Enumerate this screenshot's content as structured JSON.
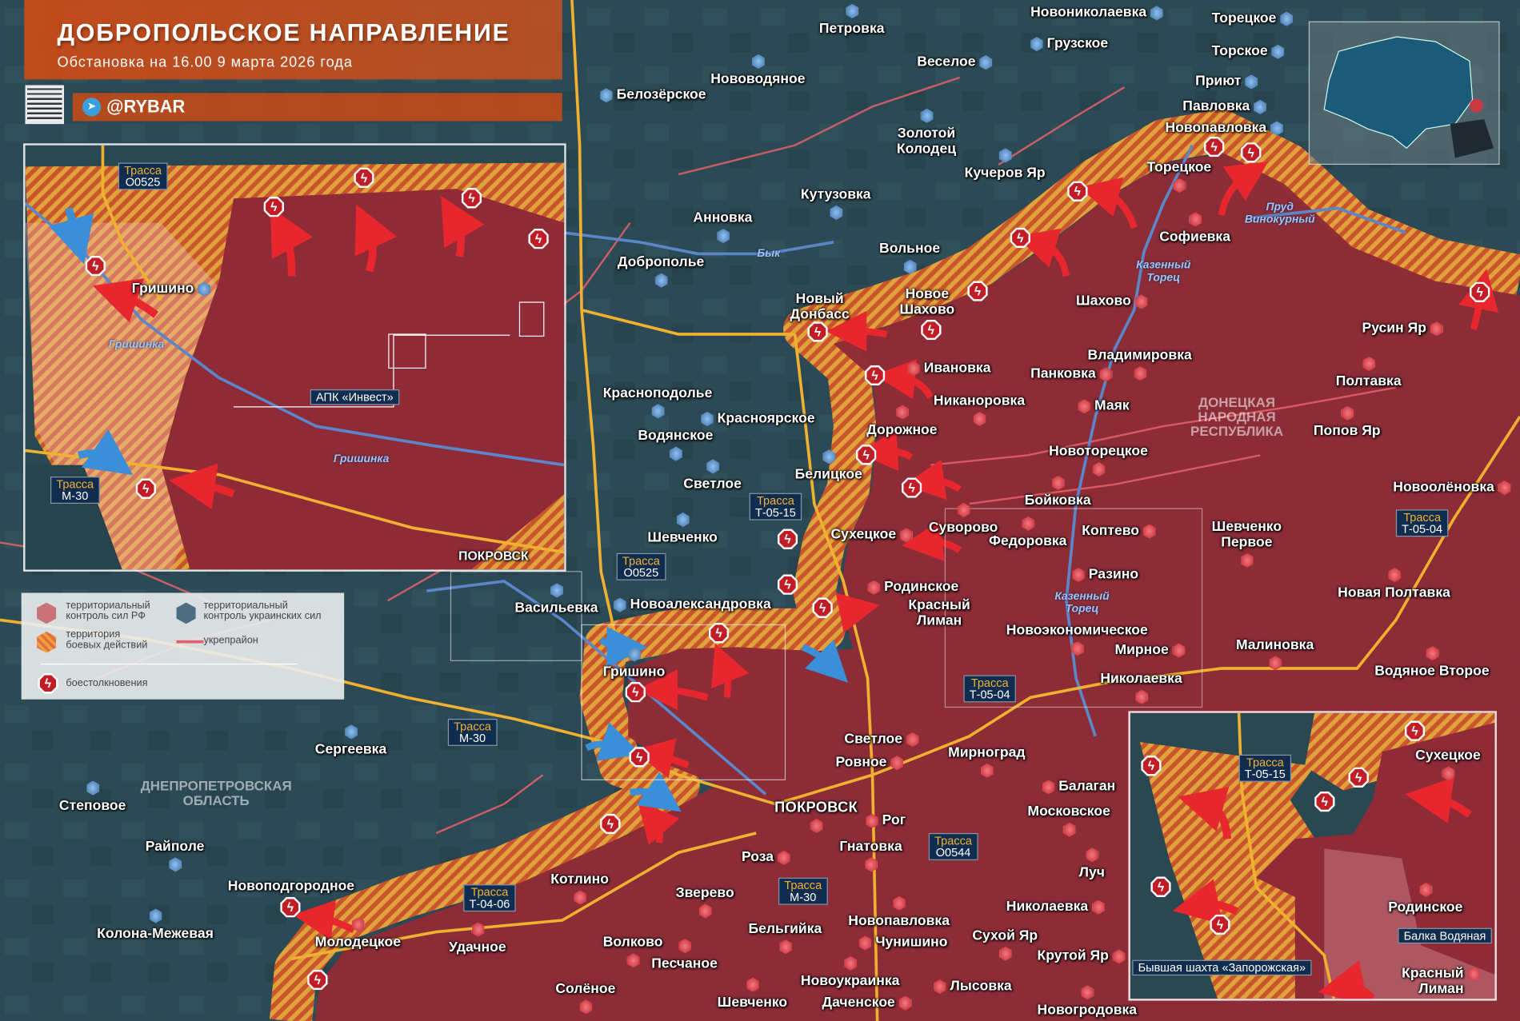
{
  "header": {
    "title": "ДОБРОПОЛЬСКОЕ НАПРАВЛЕНИЕ",
    "subtitle": "Обстановка на 16.00 9 марта 2026 года",
    "telegram_handle": "@RYBAR",
    "telegram_icon": "telegram-icon"
  },
  "legend": {
    "ru_control": "территориальный\nконтроль сил РФ",
    "ua_control": "территориальный\nконтроль украинских сил",
    "combat_zone": "территория\nбоевых действий",
    "fortified": "укрепрайон",
    "clashes": "боестолкновения"
  },
  "colors": {
    "ru_control": "#8e2b36",
    "ua_control": "#2b4852",
    "combat_hatch": "#e3a33a",
    "fortified_line": "#e8606a",
    "road": "#f0b030",
    "river": "#5b86c9",
    "title_bar": "#c84b19"
  },
  "map": {
    "regions": [
      "ДНЕПРОПЕТРОВСКАЯ\nОБЛАСТЬ",
      "ДОНЕЦКАЯ\nНАРОДНАЯ\nРЕСПУБЛИКА"
    ],
    "rivers": [
      "Бык",
      "Казенный\nТорец",
      "Пруд\nВинокурный",
      "Казенный\nТорец"
    ],
    "settlements_ua": [
      "Новониколаевка",
      "Торецкое",
      "Петровка",
      "Грузское",
      "Веселое",
      "Торское",
      "Нововодяное",
      "Белозёрское",
      "Приют",
      "Павловка",
      "Новопавловка",
      "Золотой\nКолодец",
      "Кучеров Яр",
      "Кутузовка",
      "Анновка",
      "Доброполье",
      "Вольное",
      "Красноподолье",
      "Красноярское",
      "Водянское",
      "Светлое",
      "Шевченко",
      "Белицкое",
      "Васильевка",
      "Новоалександровка",
      "Сергеевка",
      "Степовое",
      "Райполе",
      "Колона-Межевая",
      "Новоподгородное",
      "Гришино"
    ],
    "settlements_ru": [
      "Торецкое",
      "Софиевка",
      "Новый\nДонбасс",
      "Новое\nШахово",
      "Шахово",
      "Ивановка",
      "Владимировка",
      "Панковка",
      "Никаноровка",
      "Маяк",
      "Дорожное",
      "Новоторецкое",
      "Бойковка",
      "Суворово",
      "Сухецкое",
      "Федоровка",
      "Коптево",
      "Шевченко\nПервое",
      "Разино",
      "Родинское",
      "Красный\nЛиман",
      "Новоэкономическое",
      "Мирное",
      "Николаевка",
      "Малиновка",
      "Водяное Второе",
      "Новая Полтавка",
      "Новоолёновка",
      "Русин Яр",
      "Полтавка",
      "Попов Яр",
      "Светлое",
      "Мирноград",
      "Ровное",
      "ПОКРОВСК",
      "Рог",
      "Балаган",
      "Московское",
      "Гнатовка",
      "Роза",
      "Луч",
      "Котлино",
      "Зверево",
      "Николаевка",
      "Новопавловка",
      "Волково",
      "Бельгийка",
      "Чунишино",
      "Сухой Яр",
      "Удачное",
      "Молодецкое",
      "Песчаное",
      "Крутой Яр",
      "Солёное",
      "Новоукраинка",
      "Лысовка",
      "Шевченко",
      "Даченское",
      "Новогродовка"
    ],
    "roads": [
      {
        "prefix": "Трасса",
        "id": "Т-05-15"
      },
      {
        "prefix": "Трасса",
        "id": "О0525"
      },
      {
        "prefix": "Трасса",
        "id": "М-30"
      },
      {
        "prefix": "Трасса",
        "id": "Т-05-04"
      },
      {
        "prefix": "Трасса",
        "id": "Т-05-04"
      },
      {
        "prefix": "Трасса",
        "id": "О0544"
      },
      {
        "prefix": "Трасса",
        "id": "М-30"
      },
      {
        "prefix": "Трасса",
        "id": "Т-04-06"
      }
    ],
    "clash_icon": "lightning-hexagon-icon"
  },
  "inset_west": {
    "roads": [
      {
        "prefix": "Трасса",
        "id": "О0525"
      },
      {
        "prefix": "Трасса",
        "id": "М-30"
      }
    ],
    "labels": {
      "grishino": "Гришино",
      "river1": "Гришинка",
      "river2": "Гришинка",
      "apk": "АПК\n«Инвест»",
      "pokrovsk": "ПОКРОВСК"
    }
  },
  "inset_east": {
    "road": {
      "prefix": "Трасса",
      "id": "Т-05-15"
    },
    "labels": {
      "sukhetskoe": "Сухецкое",
      "rodinskoe": "Родинское",
      "balka": "Балка\nВодяная",
      "krasny_liman": "Красный\nЛиман",
      "mine": "Бывшая шахта\n«Запорожская»"
    }
  }
}
